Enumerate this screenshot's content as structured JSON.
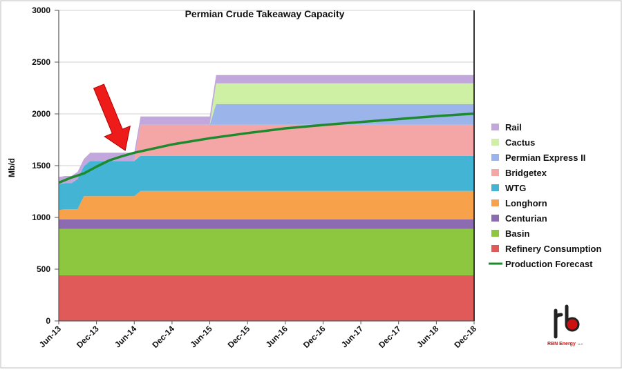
{
  "chart_data": {
    "type": "area",
    "title": "Permian Crude Takeaway Capacity",
    "ylabel": "Mb/d",
    "xlabel": "",
    "ylim": [
      0,
      3000
    ],
    "yticks": [
      0,
      500,
      1000,
      1500,
      2000,
      2500,
      3000
    ],
    "x_tick_labels": [
      "Jun-13",
      "Dec-13",
      "Jun-14",
      "Dec-14",
      "Jun-15",
      "Dec-15",
      "Jun-16",
      "Dec-16",
      "Jun-17",
      "Dec-17",
      "Jun-18",
      "Dec-18"
    ],
    "grid": true,
    "legend_position": "right",
    "x": [
      "Jun-13",
      "Jul-13",
      "Aug-13",
      "Sep-13",
      "Oct-13",
      "Nov-13",
      "Dec-13",
      "Jan-14",
      "Feb-14",
      "Mar-14",
      "Apr-14",
      "May-14",
      "Jun-14",
      "Jul-14",
      "Oct-14",
      "Dec-14",
      "Feb-15",
      "Apr-15",
      "May-15",
      "Jun-15",
      "Jul-15",
      "Dec-15",
      "Jun-16",
      "Dec-16",
      "Jun-17",
      "Dec-17",
      "Jun-18",
      "Dec-18"
    ],
    "stack_series": [
      {
        "name": "Refinery Consumption",
        "color": "#e05a5a",
        "values": [
          440,
          440,
          440,
          440,
          440,
          440,
          440,
          440,
          440,
          440,
          440,
          440,
          440,
          440,
          440,
          440,
          440,
          440,
          440,
          440,
          440,
          440,
          440,
          440,
          440,
          440,
          440,
          440
        ]
      },
      {
        "name": "Basin",
        "color": "#8dc63f",
        "values": [
          450,
          450,
          450,
          450,
          450,
          450,
          450,
          450,
          450,
          450,
          450,
          450,
          450,
          450,
          450,
          450,
          450,
          450,
          450,
          450,
          450,
          450,
          450,
          450,
          450,
          450,
          450,
          450
        ]
      },
      {
        "name": "Centurian",
        "color": "#8c6bb1",
        "values": [
          90,
          90,
          90,
          90,
          90,
          90,
          90,
          90,
          90,
          90,
          90,
          90,
          90,
          90,
          90,
          90,
          90,
          90,
          90,
          90,
          90,
          90,
          90,
          90,
          90,
          90,
          90,
          90
        ]
      },
      {
        "name": "Longhorn",
        "color": "#f7a14b",
        "values": [
          90,
          100,
          100,
          100,
          225,
          225,
          225,
          225,
          225,
          225,
          225,
          225,
          225,
          275,
          275,
          275,
          275,
          275,
          275,
          275,
          275,
          275,
          275,
          275,
          275,
          275,
          275,
          275
        ]
      },
      {
        "name": "WTG",
        "color": "#44b4d4",
        "values": [
          250,
          250,
          250,
          290,
          290,
          340,
          340,
          340,
          340,
          340,
          340,
          340,
          340,
          340,
          340,
          340,
          340,
          340,
          340,
          340,
          340,
          340,
          340,
          340,
          340,
          340,
          340,
          340
        ]
      },
      {
        "name": "Bridgetex",
        "color": "#f4a5a5",
        "values": [
          0,
          0,
          0,
          0,
          0,
          0,
          0,
          0,
          0,
          0,
          0,
          0,
          0,
          300,
          300,
          300,
          300,
          300,
          300,
          300,
          300,
          300,
          300,
          300,
          300,
          300,
          300,
          300
        ]
      },
      {
        "name": "Permian Express II",
        "color": "#9bb4ea",
        "values": [
          0,
          0,
          0,
          0,
          0,
          0,
          0,
          0,
          0,
          0,
          0,
          0,
          0,
          0,
          0,
          0,
          0,
          0,
          0,
          0,
          200,
          200,
          200,
          200,
          200,
          200,
          200,
          200
        ]
      },
      {
        "name": "Cactus",
        "color": "#cdf0a4",
        "values": [
          0,
          0,
          0,
          0,
          0,
          0,
          0,
          0,
          0,
          0,
          0,
          0,
          0,
          0,
          0,
          0,
          0,
          0,
          0,
          0,
          200,
          200,
          200,
          200,
          200,
          200,
          200,
          200
        ]
      },
      {
        "name": "Rail",
        "color": "#c2a7dd",
        "values": [
          70,
          70,
          70,
          70,
          70,
          80,
          80,
          80,
          80,
          80,
          80,
          80,
          80,
          80,
          80,
          80,
          80,
          80,
          80,
          80,
          80,
          80,
          80,
          80,
          80,
          80,
          80,
          80
        ]
      }
    ],
    "line_series": {
      "name": "Production Forecast",
      "color": "#1e8a2e",
      "x": [
        "Jun-13",
        "Aug-13",
        "Oct-13",
        "Dec-13",
        "Feb-14",
        "Apr-14",
        "Jun-14",
        "Dec-14",
        "Jun-15",
        "Dec-15",
        "Jun-16",
        "Dec-16",
        "Jun-17",
        "Dec-17",
        "Jun-18",
        "Dec-18"
      ],
      "values": [
        1335,
        1385,
        1425,
        1490,
        1550,
        1590,
        1625,
        1705,
        1765,
        1815,
        1860,
        1893,
        1922,
        1950,
        1978,
        2003
      ]
    },
    "legend": [
      "Rail",
      "Cactus",
      "Permian Express II",
      "Bridgetex",
      "WTG",
      "Longhorn",
      "Centurian",
      "Basin",
      "Refinery Consumption",
      "Production Forecast"
    ],
    "annotation": {
      "type": "arrow",
      "color": "#ee1b1b",
      "points_to_x": "May-14",
      "points_to_y": 1580
    }
  },
  "logo": {
    "name": "RBN Energy logo",
    "text": "RBN Energy",
    "suffix": "LLC"
  }
}
